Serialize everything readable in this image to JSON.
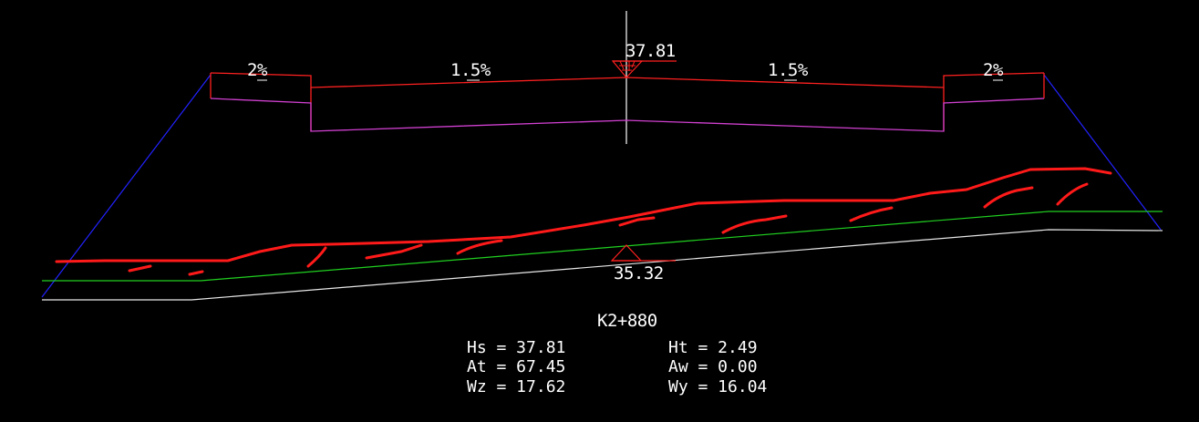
{
  "section": {
    "design_elevation": "37.81",
    "ground_elevation": "35.32",
    "station": "K2+880",
    "slope_left_shoulder": "2%",
    "slope_left_lane": "1.5%",
    "slope_right_lane": "1.5%",
    "slope_right_shoulder": "2%"
  },
  "stats": {
    "hs": "Hs = 37.81",
    "at": "At = 67.45",
    "wz": "Wz = 17.62",
    "ht": "Ht = 2.49",
    "aw": "Aw = 0.00",
    "wy": "Wy = 16.04"
  },
  "colors": {
    "background": "#000000",
    "road_surface": "#ff2020",
    "subgrade": "#d040d0",
    "side_slope": "#2020ff",
    "ground_line": "#20d020",
    "base_line": "#ffffff",
    "markup": "#ff1a1a",
    "text": "#ffffff"
  }
}
